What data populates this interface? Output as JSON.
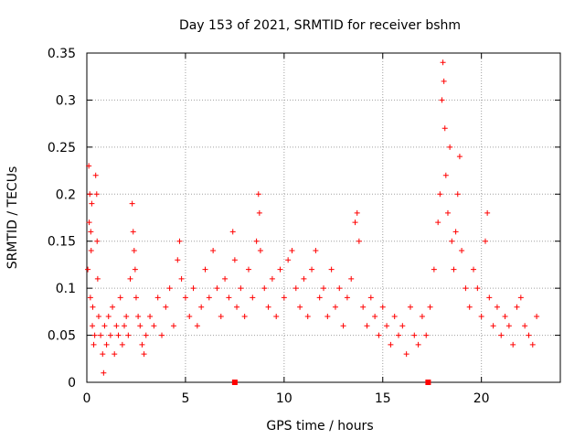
{
  "chart_data": {
    "type": "scatter",
    "title": "Day 153 of 2021, SRMTID for receiver bshm",
    "xlabel": "GPS time / hours",
    "ylabel": "SRMTID / TECUs",
    "xlim": [
      0,
      24
    ],
    "ylim": [
      0,
      0.35
    ],
    "xticks": [
      0,
      5,
      10,
      15,
      20
    ],
    "xtick_labels": [
      "0",
      "5",
      "10",
      "15",
      "20"
    ],
    "yticks": [
      0,
      0.05,
      0.1,
      0.15,
      0.2,
      0.25,
      0.3,
      0.35
    ],
    "ytick_labels": [
      "0",
      "0.05",
      "0.1",
      "0.15",
      "0.2",
      "0.25",
      "0.3",
      "0.35"
    ],
    "grid": true,
    "marker": "+",
    "series": [
      {
        "name": "SRMTID",
        "color": "#ff0000",
        "points": [
          [
            0.05,
            0.12
          ],
          [
            0.1,
            0.23
          ],
          [
            0.12,
            0.17
          ],
          [
            0.15,
            0.2
          ],
          [
            0.18,
            0.09
          ],
          [
            0.2,
            0.16
          ],
          [
            0.22,
            0.14
          ],
          [
            0.25,
            0.19
          ],
          [
            0.28,
            0.06
          ],
          [
            0.3,
            0.08
          ],
          [
            0.35,
            0.04
          ],
          [
            0.4,
            0.05
          ],
          [
            0.45,
            0.22
          ],
          [
            0.5,
            0.2
          ],
          [
            0.52,
            0.15
          ],
          [
            0.55,
            0.11
          ],
          [
            0.6,
            0.07
          ],
          [
            0.7,
            0.05
          ],
          [
            0.8,
            0.03
          ],
          [
            0.85,
            0.01
          ],
          [
            0.9,
            0.06
          ],
          [
            1.0,
            0.04
          ],
          [
            1.1,
            0.07
          ],
          [
            1.2,
            0.05
          ],
          [
            1.3,
            0.08
          ],
          [
            1.4,
            0.03
          ],
          [
            1.5,
            0.06
          ],
          [
            1.6,
            0.05
          ],
          [
            1.7,
            0.09
          ],
          [
            1.8,
            0.04
          ],
          [
            1.9,
            0.06
          ],
          [
            2.0,
            0.07
          ],
          [
            2.1,
            0.05
          ],
          [
            2.2,
            0.11
          ],
          [
            2.3,
            0.19
          ],
          [
            2.35,
            0.16
          ],
          [
            2.4,
            0.14
          ],
          [
            2.45,
            0.12
          ],
          [
            2.5,
            0.09
          ],
          [
            2.6,
            0.07
          ],
          [
            2.7,
            0.06
          ],
          [
            2.8,
            0.04
          ],
          [
            2.9,
            0.03
          ],
          [
            3.0,
            0.05
          ],
          [
            3.2,
            0.07
          ],
          [
            3.4,
            0.06
          ],
          [
            3.6,
            0.09
          ],
          [
            3.8,
            0.05
          ],
          [
            4.0,
            0.08
          ],
          [
            4.2,
            0.1
          ],
          [
            4.4,
            0.06
          ],
          [
            4.6,
            0.13
          ],
          [
            4.7,
            0.15
          ],
          [
            4.8,
            0.11
          ],
          [
            5.0,
            0.09
          ],
          [
            5.2,
            0.07
          ],
          [
            5.4,
            0.1
          ],
          [
            5.6,
            0.06
          ],
          [
            5.8,
            0.08
          ],
          [
            6.0,
            0.12
          ],
          [
            6.2,
            0.09
          ],
          [
            6.4,
            0.14
          ],
          [
            6.6,
            0.1
          ],
          [
            6.8,
            0.07
          ],
          [
            7.0,
            0.11
          ],
          [
            7.2,
            0.09
          ],
          [
            7.4,
            0.16
          ],
          [
            7.5,
            0.13
          ],
          [
            7.6,
            0.08
          ],
          [
            7.8,
            0.1
          ],
          [
            8.0,
            0.07
          ],
          [
            8.2,
            0.12
          ],
          [
            8.4,
            0.09
          ],
          [
            8.6,
            0.15
          ],
          [
            8.7,
            0.2
          ],
          [
            8.75,
            0.18
          ],
          [
            8.8,
            0.14
          ],
          [
            9.0,
            0.1
          ],
          [
            9.2,
            0.08
          ],
          [
            9.4,
            0.11
          ],
          [
            9.6,
            0.07
          ],
          [
            9.8,
            0.12
          ],
          [
            10.0,
            0.09
          ],
          [
            10.2,
            0.13
          ],
          [
            10.4,
            0.14
          ],
          [
            10.6,
            0.1
          ],
          [
            10.8,
            0.08
          ],
          [
            11.0,
            0.11
          ],
          [
            11.2,
            0.07
          ],
          [
            11.4,
            0.12
          ],
          [
            11.6,
            0.14
          ],
          [
            11.8,
            0.09
          ],
          [
            12.0,
            0.1
          ],
          [
            12.2,
            0.07
          ],
          [
            12.4,
            0.12
          ],
          [
            12.6,
            0.08
          ],
          [
            12.8,
            0.1
          ],
          [
            13.0,
            0.06
          ],
          [
            13.2,
            0.09
          ],
          [
            13.4,
            0.11
          ],
          [
            13.6,
            0.17
          ],
          [
            13.7,
            0.18
          ],
          [
            13.8,
            0.15
          ],
          [
            14.0,
            0.08
          ],
          [
            14.2,
            0.06
          ],
          [
            14.4,
            0.09
          ],
          [
            14.6,
            0.07
          ],
          [
            14.8,
            0.05
          ],
          [
            15.0,
            0.08
          ],
          [
            15.2,
            0.06
          ],
          [
            15.4,
            0.04
          ],
          [
            15.6,
            0.07
          ],
          [
            15.8,
            0.05
          ],
          [
            16.0,
            0.06
          ],
          [
            16.2,
            0.03
          ],
          [
            16.4,
            0.08
          ],
          [
            16.6,
            0.05
          ],
          [
            16.8,
            0.04
          ],
          [
            17.0,
            0.07
          ],
          [
            17.2,
            0.05
          ],
          [
            17.4,
            0.08
          ],
          [
            17.6,
            0.12
          ],
          [
            17.8,
            0.17
          ],
          [
            17.9,
            0.2
          ],
          [
            18.0,
            0.3
          ],
          [
            18.05,
            0.34
          ],
          [
            18.1,
            0.32
          ],
          [
            18.15,
            0.27
          ],
          [
            18.2,
            0.22
          ],
          [
            18.3,
            0.18
          ],
          [
            18.4,
            0.25
          ],
          [
            18.5,
            0.15
          ],
          [
            18.6,
            0.12
          ],
          [
            18.7,
            0.16
          ],
          [
            18.8,
            0.2
          ],
          [
            18.9,
            0.24
          ],
          [
            19.0,
            0.14
          ],
          [
            19.2,
            0.1
          ],
          [
            19.4,
            0.08
          ],
          [
            19.6,
            0.12
          ],
          [
            19.8,
            0.1
          ],
          [
            20.0,
            0.07
          ],
          [
            20.2,
            0.15
          ],
          [
            20.3,
            0.18
          ],
          [
            20.4,
            0.09
          ],
          [
            20.6,
            0.06
          ],
          [
            20.8,
            0.08
          ],
          [
            21.0,
            0.05
          ],
          [
            21.2,
            0.07
          ],
          [
            21.4,
            0.06
          ],
          [
            21.6,
            0.04
          ],
          [
            21.8,
            0.08
          ],
          [
            22.0,
            0.09
          ],
          [
            22.2,
            0.06
          ],
          [
            22.4,
            0.05
          ],
          [
            22.6,
            0.04
          ],
          [
            22.8,
            0.07
          ]
        ]
      }
    ],
    "gap_markers_x": [
      7.5,
      17.3
    ]
  }
}
